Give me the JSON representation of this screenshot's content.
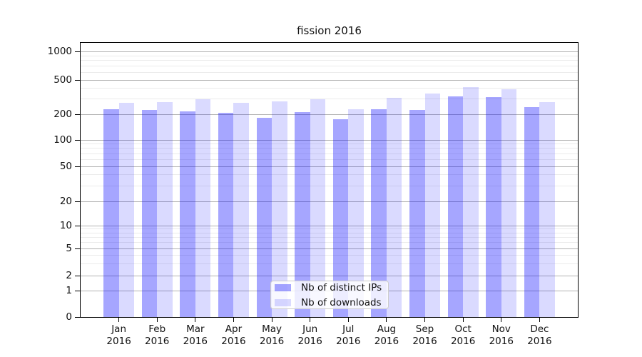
{
  "chart_data": {
    "type": "bar",
    "title": "fission 2016",
    "x_ticks": [
      {
        "line1": "Jan",
        "line2": "2016"
      },
      {
        "line1": "Feb",
        "line2": "2016"
      },
      {
        "line1": "Mar",
        "line2": "2016"
      },
      {
        "line1": "Apr",
        "line2": "2016"
      },
      {
        "line1": "May",
        "line2": "2016"
      },
      {
        "line1": "Jun",
        "line2": "2016"
      },
      {
        "line1": "Jul",
        "line2": "2016"
      },
      {
        "line1": "Aug",
        "line2": "2016"
      },
      {
        "line1": "Sep",
        "line2": "2016"
      },
      {
        "line1": "Oct",
        "line2": "2016"
      },
      {
        "line1": "Nov",
        "line2": "2016"
      },
      {
        "line1": "Dec",
        "line2": "2016"
      }
    ],
    "series": [
      {
        "name": "Nb of distinct IPs",
        "values": [
          230,
          225,
          216,
          208,
          181,
          210,
          175,
          227,
          226,
          324,
          316,
          241
        ]
      },
      {
        "name": "Nb of downloads",
        "values": [
          271,
          276,
          299,
          271,
          282,
          297,
          228,
          309,
          348,
          415,
          393,
          276
        ]
      }
    ],
    "yscale": "symlog",
    "y_ticks": [
      0,
      1,
      2,
      5,
      10,
      20,
      50,
      100,
      200,
      500,
      1000
    ],
    "y_minor_gridlines": [
      3,
      4,
      6,
      7,
      8,
      9,
      30,
      40,
      60,
      70,
      80,
      90,
      300,
      400,
      600,
      700,
      800,
      900
    ],
    "ylim": [
      0,
      1100
    ],
    "grid": true,
    "legend_position": "lower center (inside plot)"
  },
  "colors": {
    "bar_distinct_ips": "rgba(0,0,255,0.35)",
    "bar_downloads": "rgba(0,0,255,0.145)",
    "grid_major": "#b2b2b2",
    "grid_minor": "#ebebeb",
    "axis": "#000000",
    "text": "#111111",
    "legend_border": "#cccccc",
    "legend_background": "rgba(255,255,255,0.8)"
  }
}
